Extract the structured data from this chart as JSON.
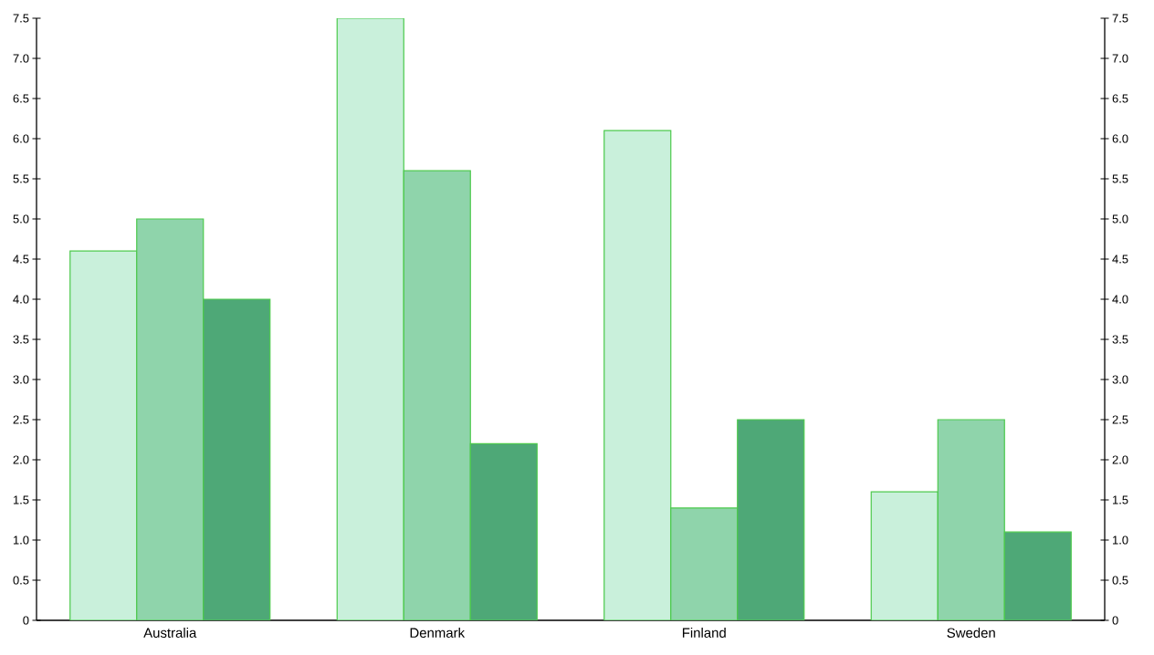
{
  "chart_data": {
    "type": "bar",
    "categories": [
      "Australia",
      "Denmark",
      "Finland",
      "Sweden"
    ],
    "series": [
      {
        "color": "#c9f0db",
        "values": [
          4.6,
          7.5,
          6.1,
          1.6
        ]
      },
      {
        "color": "#8fd4ab",
        "values": [
          5.0,
          5.6,
          1.4,
          2.5
        ]
      },
      {
        "color": "#4ea877",
        "values": [
          4.0,
          2.2,
          2.5,
          1.1
        ]
      }
    ],
    "ylim": [
      0,
      7.5
    ],
    "yticks": [
      0,
      {
        "value": 0.5,
        "label": "0.5"
      },
      {
        "value": 1,
        "label": "1.0"
      },
      {
        "value": 1.5,
        "label": "1.5"
      },
      {
        "value": 2,
        "label": "2.0"
      },
      {
        "value": 2.5,
        "label": "2.5"
      },
      {
        "value": 3,
        "label": "3.0"
      },
      {
        "value": 3.5,
        "label": "3.5"
      },
      {
        "value": 4,
        "label": "4.0"
      },
      {
        "value": 4.5,
        "label": "4.5"
      },
      {
        "value": 5,
        "label": "5.0"
      },
      {
        "value": 5.5,
        "label": "5.5"
      },
      {
        "value": 6,
        "label": "6.0"
      },
      {
        "value": 6.5,
        "label": "6.5"
      },
      {
        "value": 7,
        "label": "7.0"
      },
      {
        "value": 7.5,
        "label": "7.5"
      }
    ],
    "y2lim": [
      0,
      7.5
    ],
    "y2ticks": [
      0,
      {
        "value": 0.5,
        "label": "0.5"
      },
      {
        "value": 1,
        "label": "1.0"
      },
      {
        "value": 1.5,
        "label": "1.5"
      },
      {
        "value": 2,
        "label": "2.0"
      },
      {
        "value": 2.5,
        "label": "2.5"
      },
      {
        "value": 3,
        "label": "3.0"
      },
      {
        "value": 3.5,
        "label": "3.5"
      },
      {
        "value": 4,
        "label": "4.0"
      },
      {
        "value": 4.5,
        "label": "4.5"
      },
      {
        "value": 5,
        "label": "5.0"
      },
      {
        "value": 5.5,
        "label": "5.5"
      },
      {
        "value": 6,
        "label": "6.0"
      },
      {
        "value": 6.5,
        "label": "6.5"
      },
      {
        "value": 7,
        "label": "7.0"
      },
      {
        "value": 7.5,
        "label": "7.5"
      }
    ]
  }
}
